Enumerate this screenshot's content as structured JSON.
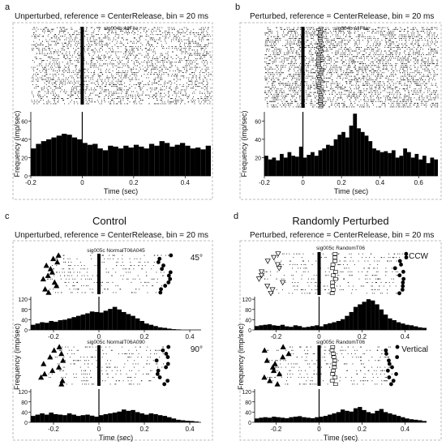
{
  "panels": [
    {
      "letter": "a",
      "heading": "Unperturbed, reference = CenterRelease, bin = 20 ms",
      "big_title": ""
    },
    {
      "letter": "b",
      "heading": "Perturbed, reference = CenterRelease, bin = 20 ms",
      "big_title": ""
    },
    {
      "letter": "c",
      "heading": "Unperturbed, reference = CenterRelease, bin = 20 ms",
      "big_title": "Control"
    },
    {
      "letter": "d",
      "heading": "Perturbed, reference = CenterRelease, bin = 20 ms",
      "big_title": "Randomly Perturbed"
    }
  ],
  "chart_data": [
    {
      "type": "bar",
      "panel": "a",
      "raster_label": "sig004b AllFile",
      "xlabel": "Time (sec)",
      "ylabel": "Frequency (imp/sec)",
      "xlim": [
        -0.2,
        0.5
      ],
      "ylim": [
        0,
        70
      ],
      "xticks": [
        -0.2,
        0,
        0.2,
        0.4
      ],
      "yticks": [
        0,
        20,
        40,
        60
      ],
      "bin_width": 0.02,
      "x_start": -0.2,
      "values": [
        30,
        35,
        38,
        40,
        42,
        44,
        46,
        45,
        42,
        40,
        36,
        34,
        35,
        30,
        28,
        33,
        32,
        30,
        33,
        31,
        34,
        32,
        30,
        35,
        33,
        38,
        36,
        32,
        34,
        36,
        33,
        30,
        31,
        29,
        33
      ]
    },
    {
      "type": "bar",
      "panel": "b",
      "raster_label": "sig004b AllFile",
      "xlabel": "Time (sec)",
      "ylabel": "Frequency (imp/sec)",
      "xlim": [
        -0.2,
        0.7
      ],
      "ylim": [
        0,
        70
      ],
      "xticks": [
        -0.2,
        0,
        0.2,
        0.4,
        0.6
      ],
      "yticks": [
        20,
        40,
        60
      ],
      "bin_width": 0.02,
      "x_start": -0.2,
      "values": [
        22,
        18,
        20,
        17,
        24,
        20,
        26,
        22,
        21,
        32,
        20,
        23,
        26,
        22,
        28,
        30,
        34,
        33,
        40,
        45,
        48,
        42,
        55,
        68,
        52,
        48,
        44,
        38,
        30,
        28,
        26,
        27,
        25,
        28,
        20,
        22,
        30,
        26,
        20,
        24,
        18,
        22,
        14,
        20,
        18
      ]
    },
    {
      "type": "bar",
      "panel": "c-top",
      "raster_label": "sig005c NormalT06A045",
      "direction_label": "45°",
      "xlabel": "",
      "ylabel": "",
      "xlim": [
        -0.3,
        0.45
      ],
      "ylim": [
        0,
        130
      ],
      "xticks": [
        -0.2,
        0,
        0.2,
        0.4
      ],
      "yticks": [
        0,
        40,
        80,
        120
      ],
      "bin_width": 0.02,
      "x_start": -0.3,
      "values": [
        20,
        25,
        30,
        28,
        35,
        32,
        38,
        40,
        45,
        50,
        55,
        60,
        65,
        72,
        70,
        68,
        75,
        82,
        90,
        80,
        70,
        62,
        55,
        45,
        35,
        25,
        20,
        15,
        10,
        8,
        5,
        3,
        2,
        0,
        0,
        0,
        0
      ]
    },
    {
      "type": "bar",
      "panel": "c-bottom",
      "raster_label": "sig005c NormalT06A090",
      "direction_label": "90°",
      "xlabel": "Time (sec)",
      "ylabel": "Frequency (imp/sec)",
      "xlim": [
        -0.3,
        0.45
      ],
      "ylim": [
        0,
        130
      ],
      "xticks": [
        -0.2,
        0,
        0.2,
        0.4
      ],
      "yticks": [
        0,
        40,
        80,
        120
      ],
      "bin_width": 0.02,
      "x_start": -0.3,
      "values": [
        25,
        30,
        35,
        30,
        38,
        32,
        30,
        28,
        35,
        30,
        25,
        28,
        30,
        26,
        22,
        28,
        32,
        35,
        38,
        42,
        50,
        45,
        48,
        40,
        35,
        30,
        35,
        32,
        28,
        25,
        20,
        15,
        10,
        8,
        6,
        5,
        3
      ]
    },
    {
      "type": "bar",
      "panel": "d-top",
      "raster_label": "sig005c RandomT06",
      "direction_label": "CCW",
      "xlabel": "",
      "ylabel": "",
      "xlim": [
        -0.3,
        0.5
      ],
      "ylim": [
        0,
        130
      ],
      "xticks": [
        -0.2,
        0,
        0.2,
        0.4
      ],
      "yticks": [
        0,
        40,
        80,
        120
      ],
      "bin_width": 0.02,
      "x_start": -0.3,
      "values": [
        15,
        18,
        20,
        22,
        18,
        16,
        20,
        14,
        12,
        18,
        15,
        10,
        12,
        15,
        18,
        14,
        22,
        26,
        30,
        35,
        42,
        55,
        70,
        90,
        100,
        110,
        120,
        115,
        100,
        80,
        60,
        45,
        38,
        30,
        25,
        20,
        18,
        14,
        10,
        8
      ]
    },
    {
      "type": "bar",
      "panel": "d-bottom",
      "raster_label": "sig005c RandomT06",
      "direction_label": "Vertical",
      "xlabel": "Time (sec)",
      "ylabel": "Frequency (imp/sec)",
      "xlim": [
        -0.3,
        0.5
      ],
      "ylim": [
        0,
        130
      ],
      "xticks": [
        -0.2,
        0,
        0.2,
        0.4
      ],
      "yticks": [
        0,
        40,
        80,
        120
      ],
      "bin_width": 0.02,
      "x_start": -0.3,
      "values": [
        15,
        18,
        20,
        18,
        22,
        20,
        18,
        16,
        20,
        22,
        24,
        20,
        18,
        16,
        20,
        22,
        25,
        30,
        35,
        40,
        50,
        45,
        42,
        55,
        60,
        48,
        40,
        35,
        45,
        52,
        40,
        35,
        30,
        25,
        20,
        15,
        12,
        10,
        8,
        5
      ]
    }
  ]
}
